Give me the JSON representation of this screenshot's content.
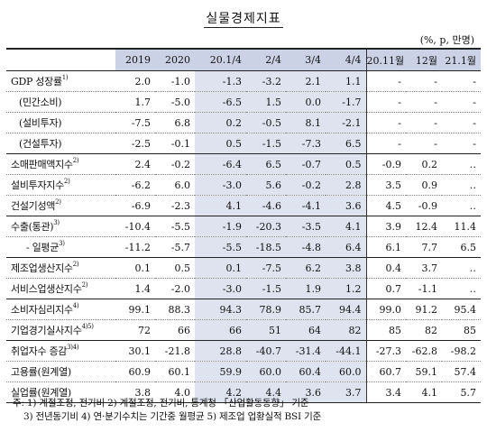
{
  "title": "실물경제지표",
  "unit": "(%, p, 만명)",
  "columns": [
    "2019",
    "2020",
    "20.1/4",
    "2/4",
    "3/4",
    "4/4",
    "20.11월",
    "12월",
    "21.1월"
  ],
  "rows": [
    {
      "label": "GDP 성장률",
      "sup": "1)",
      "values": [
        "2.0",
        "-1.0",
        "-1.3",
        "-3.2",
        "2.1",
        "1.1",
        "-",
        "-",
        "-"
      ]
    },
    {
      "label": "(민간소비)",
      "values": [
        "1.7",
        "-5.0",
        "-6.5",
        "1.5",
        "0.0",
        "-1.7",
        "-",
        "-",
        "-"
      ]
    },
    {
      "label": "(설비투자)",
      "values": [
        "-7.5",
        "6.8",
        "0.2",
        "-0.5",
        "8.1",
        "-2.1",
        "-",
        "-",
        "-"
      ]
    },
    {
      "label": "(건설투자)",
      "values": [
        "-2.5",
        "-0.1",
        "0.5",
        "-1.5",
        "-7.3",
        "6.5",
        "-",
        "-",
        "-"
      ]
    },
    {
      "label": "소매판매액지수",
      "sup": "2)",
      "values": [
        "2.4",
        "-0.2",
        "-6.4",
        "6.5",
        "-0.7",
        "0.5",
        "-0.9",
        "0.2",
        "‥"
      ]
    },
    {
      "label": "설비투자지수",
      "sup": "2)",
      "values": [
        "-6.2",
        "6.0",
        "-3.0",
        "5.6",
        "-0.2",
        "2.8",
        "3.5",
        "0.9",
        "‥"
      ]
    },
    {
      "label": "건설기성액",
      "sup": "2)",
      "values": [
        "-6.9",
        "-2.3",
        "4.1",
        "-4.6",
        "-4.1",
        "3.6",
        "4.5",
        "-0.9",
        "‥"
      ]
    },
    {
      "label": "수출(통관)",
      "sup": "3)",
      "values": [
        "-10.4",
        "-5.5",
        "-1.9",
        "-20.3",
        "-3.5",
        "4.1",
        "3.9",
        "12.4",
        "11.4"
      ]
    },
    {
      "label": "- 일평균",
      "sup": "3)",
      "values": [
        "-11.2",
        "-5.7",
        "-5.5",
        "-18.5",
        "-4.8",
        "6.4",
        "6.1",
        "7.7",
        "6.5"
      ]
    },
    {
      "label": "제조업생산지수",
      "sup": "2)",
      "values": [
        "0.1",
        "0.5",
        "0.1",
        "-7.5",
        "6.2",
        "3.8",
        "0.4",
        "3.7",
        "‥"
      ]
    },
    {
      "label": "서비스업생산지수",
      "sup": "2)",
      "values": [
        "1.4",
        "-2.0",
        "-3.0",
        "-1.5",
        "1.9",
        "1.2",
        "0.7",
        "-1.1",
        "‥"
      ]
    },
    {
      "label": "소비자심리지수",
      "sup": "4)",
      "values": [
        "99.1",
        "88.3",
        "94.3",
        "78.9",
        "85.7",
        "94.4",
        "99.0",
        "91.2",
        "95.4"
      ]
    },
    {
      "label": "기업경기실사지수",
      "sup": "4)5)",
      "values": [
        "72",
        "66",
        "66",
        "51",
        "64",
        "82",
        "85",
        "82",
        "85"
      ]
    },
    {
      "label": "취업자수 증감",
      "sup": "3)4)",
      "values": [
        "30.1",
        "-21.8",
        "28.8",
        "-40.7",
        "-31.4",
        "-44.1",
        "-27.3",
        "-62.8",
        "-98.2"
      ]
    },
    {
      "label": "고용률(원계열)",
      "values": [
        "60.9",
        "60.1",
        "59.9",
        "60.0",
        "60.4",
        "60.0",
        "60.7",
        "59.1",
        "57.4"
      ]
    },
    {
      "label": "실업률(원계열)",
      "values": [
        "3.8",
        "4.0",
        "4.2",
        "4.4",
        "3.6",
        "3.7",
        "3.4",
        "4.1",
        "5.7"
      ]
    }
  ],
  "notes": [
    "주: 1) 계절조정, 전기비   2) 계절조정, 전기비, 통계청 「산업활동동향」 기준",
    "3) 전년동기비         4) 연·분기수치는 기간중 월평균      5) 제조업 업황실적 BSI 기준"
  ]
}
